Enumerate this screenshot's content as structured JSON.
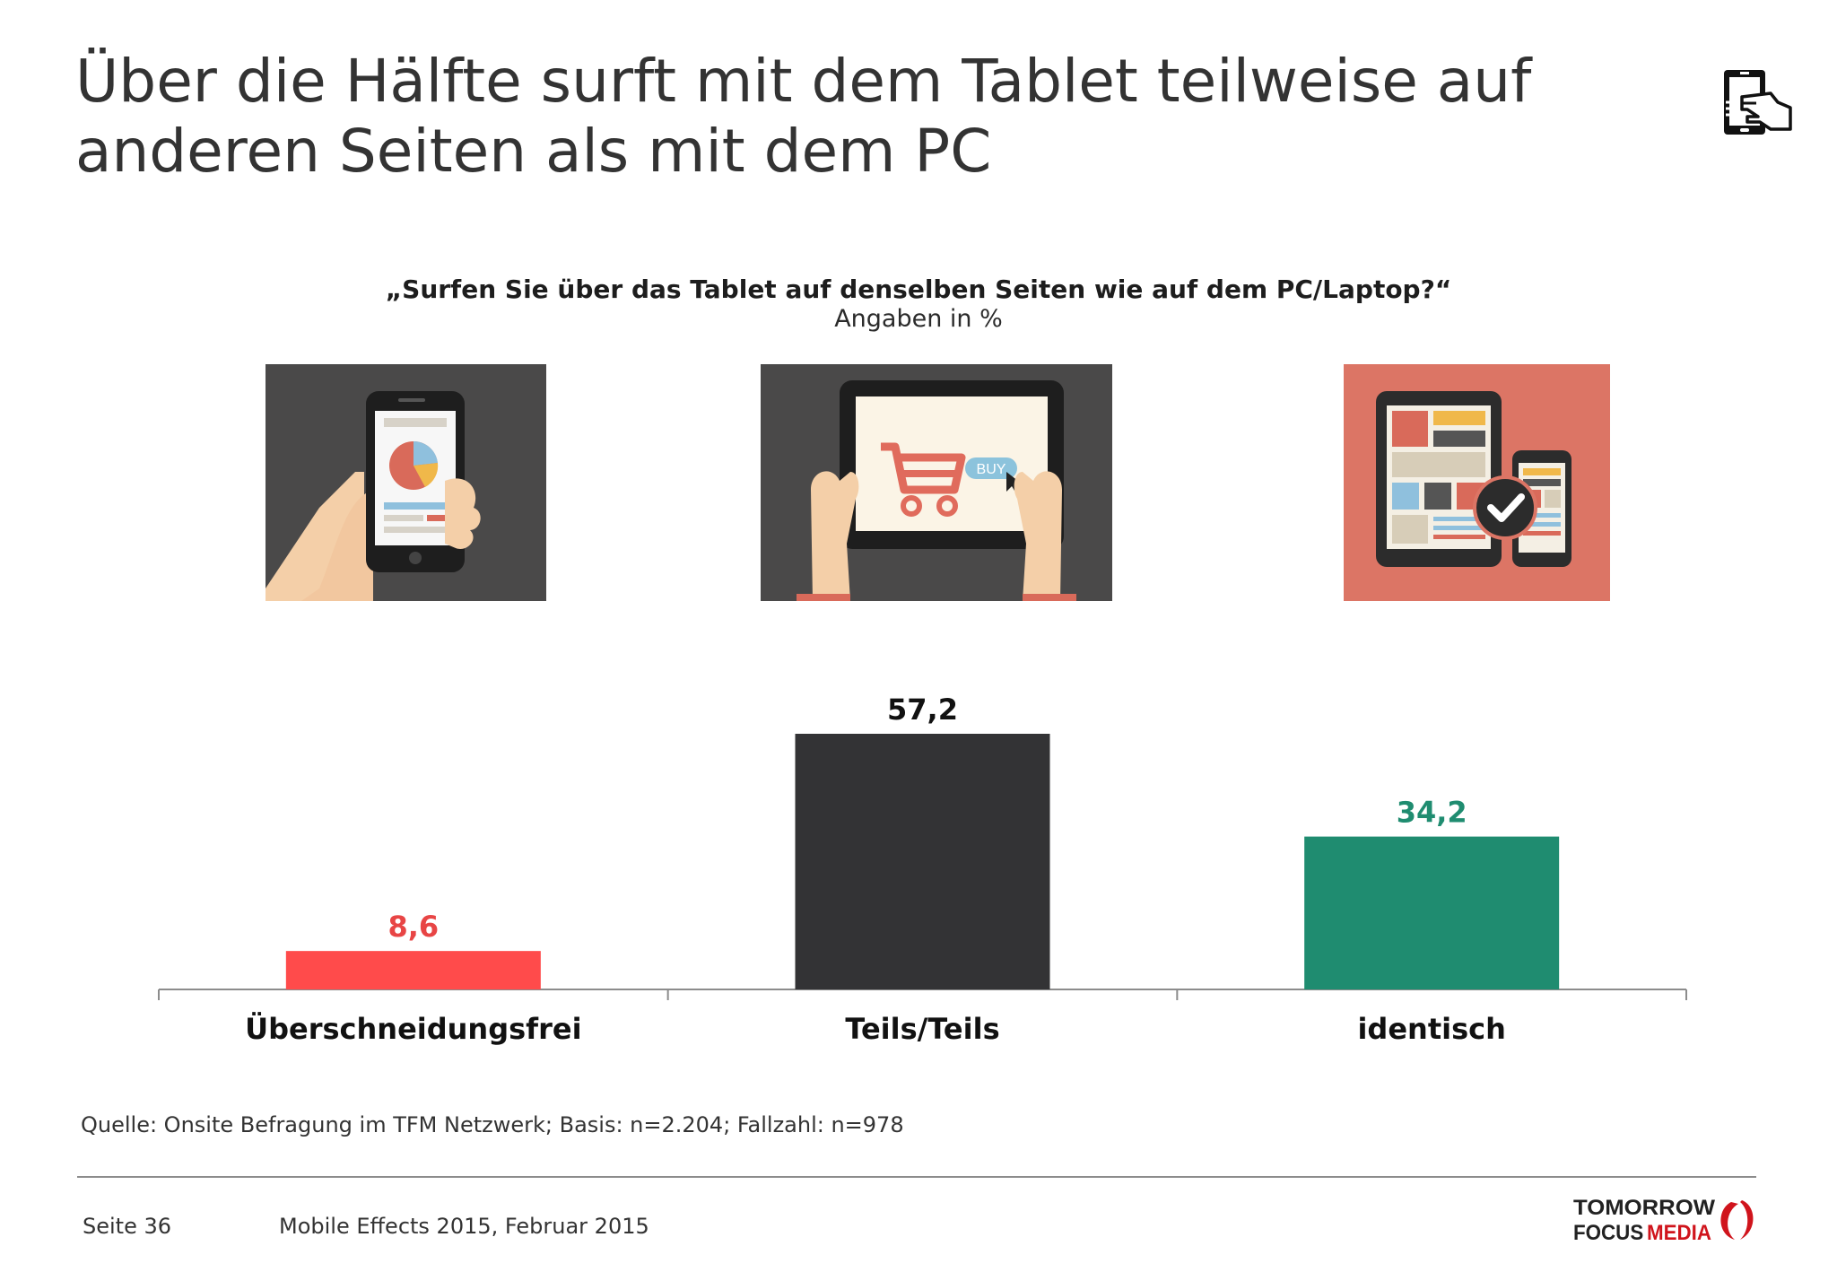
{
  "header": {
    "title_line1": "Über die Hälfte surft mit dem Tablet teilweise auf",
    "title_line2": "anderen Seiten als mit dem PC",
    "icon": "tablet-hand-icon"
  },
  "chart_data": {
    "type": "bar",
    "title": "„Surfen Sie über das Tablet auf denselben Seiten wie auf dem PC/Laptop?“",
    "subtitle": "Angaben in %",
    "categories": [
      "Überschneidungsfrei",
      "Teils/Teils",
      "identisch"
    ],
    "values": [
      8.6,
      57.2,
      34.2
    ],
    "value_labels": [
      "8,6",
      "57,2",
      "34,2"
    ],
    "colors": [
      "#ff4b4b",
      "#333335",
      "#1f8c70"
    ],
    "label_colors": [
      "#e84545",
      "#111111",
      "#1f8c70"
    ],
    "ylim": [
      0,
      57.2
    ],
    "grid": false,
    "legend": "none"
  },
  "illustrations": [
    {
      "name": "smartphone-chart-illustration"
    },
    {
      "name": "tablet-shopping-cart-illustration",
      "button_text": "BUY"
    },
    {
      "name": "responsive-devices-check-illustration"
    }
  ],
  "footer": {
    "source": "Quelle: Onsite Befragung im TFM Netzwerk; Basis: n=2.204; Fallzahl: n=978",
    "page": "Seite 36",
    "publication": "Mobile Effects 2015, Februar 2015",
    "logo_line1": "TOMORROW",
    "logo_line2a": "FOCUS",
    "logo_line2b": "MEDIA"
  }
}
